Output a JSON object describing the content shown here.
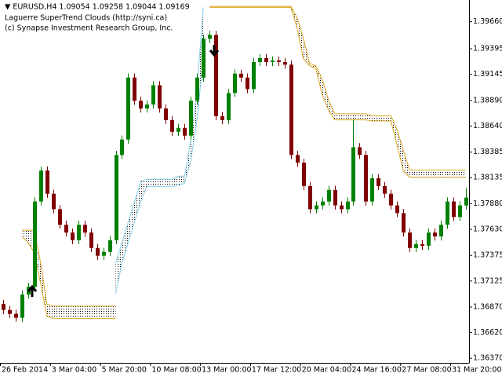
{
  "chart_data": {
    "type": "candlestick",
    "title": "▼ EURUSD,H4  1.09054 1.09258 1.09044 1.09169",
    "annotations": [
      "Laguerre SuperTrend Clouds (http://syni.ca)",
      "(c) Synapse Investment Research Group, Inc."
    ],
    "categories": [
      "26 Feb 2014",
      null,
      null,
      null,
      null,
      null,
      null,
      null,
      "3 Mar 04:00",
      null,
      null,
      null,
      null,
      null,
      null,
      null,
      "5 Mar 20:00",
      null,
      null,
      null,
      null,
      null,
      null,
      null,
      "10 Mar 08:00",
      null,
      null,
      null,
      null,
      null,
      null,
      null,
      "13 Mar 00:00",
      null,
      null,
      null,
      null,
      null,
      null,
      null,
      "17 Mar 12:00",
      null,
      null,
      null,
      null,
      null,
      null,
      null,
      "20 Mar 04:00",
      null,
      null,
      null,
      null,
      null,
      null,
      null,
      "24 Mar 16:00",
      null,
      null,
      null,
      null,
      null,
      null,
      null,
      "27 Mar 08:00",
      null,
      null,
      null,
      null,
      null,
      null,
      null,
      "31 Mar 20:00",
      null,
      null
    ],
    "open": [
      1.369,
      1.36842,
      1.36804,
      1.36766,
      1.36993,
      1.37069,
      1.37902,
      1.38205,
      1.37978,
      1.37827,
      1.37675,
      1.37599,
      1.37524,
      1.37675,
      1.37599,
      1.37448,
      1.37372,
      1.3741,
      1.37524,
      1.38357,
      1.38508,
      1.39114,
      1.38887,
      1.38811,
      1.3885,
      1.39039,
      1.38811,
      1.38698,
      1.38584,
      1.38622,
      1.38546,
      1.38887,
      1.39114,
      1.39493,
      1.39531,
      1.38736,
      1.38698,
      1.38963,
      1.39152,
      1.39114,
      1.39001,
      1.39266,
      1.39304,
      1.39266,
      1.39281,
      1.39266,
      1.3924,
      1.38357,
      1.38281,
      1.38054,
      1.37827,
      1.37864,
      1.37902,
      1.38016,
      1.37864,
      1.37827,
      1.37902,
      1.38433,
      1.38357,
      1.37902,
      1.3813,
      1.38054,
      1.37978,
      1.37864,
      1.37789,
      1.37599,
      1.37448,
      1.37486,
      1.3747,
      1.37599,
      1.37561,
      1.37675,
      1.37902,
      1.37751,
      1.37864
    ],
    "high": [
      1.3694,
      1.36882,
      1.36844,
      1.37033,
      1.37109,
      1.37942,
      1.38245,
      1.38245,
      1.38018,
      1.37867,
      1.37715,
      1.37639,
      1.37715,
      1.37715,
      1.37639,
      1.37488,
      1.3745,
      1.37564,
      1.38397,
      1.38548,
      1.39154,
      1.39154,
      1.38927,
      1.3889,
      1.39079,
      1.39079,
      1.38851,
      1.38738,
      1.38662,
      1.38662,
      1.38927,
      1.39154,
      1.39533,
      1.39571,
      1.39571,
      1.38776,
      1.39003,
      1.39192,
      1.39192,
      1.39154,
      1.39306,
      1.39344,
      1.39344,
      1.39321,
      1.39321,
      1.39306,
      1.3928,
      1.38397,
      1.38321,
      1.38094,
      1.37904,
      1.37942,
      1.38056,
      1.38056,
      1.37904,
      1.37942,
      1.387,
      1.38473,
      1.38397,
      1.3817,
      1.3817,
      1.38094,
      1.38018,
      1.37904,
      1.37829,
      1.37639,
      1.37526,
      1.37526,
      1.37639,
      1.37639,
      1.37715,
      1.37942,
      1.37942,
      1.37904,
      1.38035
    ],
    "low": [
      1.36802,
      1.36764,
      1.36726,
      1.36726,
      1.36953,
      1.37029,
      1.37862,
      1.37938,
      1.37787,
      1.37635,
      1.37559,
      1.37484,
      1.37484,
      1.37559,
      1.37408,
      1.37332,
      1.37332,
      1.3737,
      1.37484,
      1.38317,
      1.38468,
      1.38847,
      1.38771,
      1.38771,
      1.3881,
      1.38771,
      1.38658,
      1.38544,
      1.38544,
      1.38506,
      1.38506,
      1.38847,
      1.39074,
      1.39453,
      1.38696,
      1.38658,
      1.38658,
      1.38923,
      1.39074,
      1.38961,
      1.38961,
      1.39226,
      1.39226,
      1.39226,
      1.39226,
      1.392,
      1.38317,
      1.38241,
      1.38014,
      1.37787,
      1.37787,
      1.37824,
      1.37862,
      1.37824,
      1.37787,
      1.37787,
      1.37862,
      1.38317,
      1.37862,
      1.37862,
      1.38014,
      1.37938,
      1.37824,
      1.37749,
      1.37559,
      1.37408,
      1.37408,
      1.3743,
      1.3743,
      1.37521,
      1.37521,
      1.37635,
      1.37711,
      1.37711,
      1.37824
    ],
    "close": [
      1.36842,
      1.36804,
      1.36766,
      1.36993,
      1.37069,
      1.37902,
      1.38205,
      1.37978,
      1.37827,
      1.37675,
      1.37599,
      1.37524,
      1.37675,
      1.37599,
      1.37448,
      1.37372,
      1.3741,
      1.37524,
      1.38357,
      1.38508,
      1.39114,
      1.38887,
      1.38811,
      1.3885,
      1.39039,
      1.38811,
      1.38698,
      1.38584,
      1.38622,
      1.38546,
      1.38887,
      1.39114,
      1.39493,
      1.39531,
      1.38736,
      1.38698,
      1.38963,
      1.39152,
      1.39114,
      1.39001,
      1.39266,
      1.39304,
      1.39266,
      1.39281,
      1.39266,
      1.3924,
      1.38357,
      1.38281,
      1.38054,
      1.37827,
      1.37864,
      1.37902,
      1.38016,
      1.37864,
      1.37827,
      1.37902,
      1.38433,
      1.38357,
      1.37902,
      1.3813,
      1.38054,
      1.37978,
      1.37864,
      1.37789,
      1.37599,
      1.37448,
      1.37486,
      1.3747,
      1.37599,
      1.37561,
      1.37675,
      1.37902,
      1.37751,
      1.37864,
      1.3794
    ],
    "up_color": "#008000",
    "down_color": "#800000",
    "clouds": [
      {
        "color": "#daa520",
        "upper": [
          null,
          null,
          null,
          1.37622,
          1.37622,
          1.37622,
          1.373,
          1.369,
          1.3688,
          1.3688,
          1.3688,
          1.3688,
          1.3688,
          1.3688,
          1.3688,
          1.3688,
          1.3688,
          1.3688,
          1.3688,
          null,
          null,
          null,
          null,
          null,
          null,
          null,
          null,
          null,
          null,
          null,
          null,
          null,
          null,
          null,
          null,
          null,
          null,
          null,
          null,
          null,
          null,
          null,
          null,
          null,
          null,
          null,
          null,
          null,
          null,
          null,
          null,
          null,
          null,
          null,
          null,
          null,
          null,
          null,
          null,
          null,
          null,
          null,
          null,
          null,
          null,
          null,
          null,
          null,
          null,
          null,
          null,
          null,
          null,
          null,
          null
        ],
        "lower": [
          null,
          null,
          null,
          1.3756,
          1.375,
          1.374,
          1.371,
          1.3678,
          1.3676,
          1.3676,
          1.3676,
          1.3676,
          1.3676,
          1.3676,
          1.3676,
          1.3676,
          1.3676,
          1.3676,
          1.3676,
          null,
          null,
          null,
          null,
          null,
          null,
          null,
          null,
          null,
          null,
          null,
          null,
          null,
          null,
          null,
          null,
          null,
          null,
          null,
          null,
          null,
          null,
          null,
          null,
          null,
          null,
          null,
          null,
          null,
          null,
          null,
          null,
          null,
          null,
          null,
          null,
          null,
          null,
          null,
          null,
          null,
          null,
          null,
          null,
          null,
          null,
          null,
          null,
          null,
          null,
          null,
          null,
          null,
          null,
          null,
          null
        ]
      },
      {
        "color": "#87ceeb",
        "upper": [
          null,
          null,
          null,
          null,
          null,
          null,
          null,
          null,
          null,
          null,
          null,
          null,
          null,
          null,
          null,
          null,
          null,
          null,
          1.373,
          1.375,
          1.377,
          1.379,
          1.381,
          1.3812,
          1.3812,
          1.3812,
          1.3812,
          1.3812,
          1.3815,
          1.3815,
          1.385,
          1.39,
          1.398,
          null,
          null,
          null,
          null,
          null,
          null,
          null,
          null,
          null,
          null,
          null,
          null,
          null,
          null,
          null,
          null,
          null,
          null,
          null,
          null,
          null,
          null,
          null,
          null,
          null,
          null,
          null,
          null,
          null,
          null,
          null,
          null,
          null,
          null,
          null,
          null,
          null,
          null,
          null,
          null,
          null,
          null
        ],
        "lower": [
          null,
          null,
          null,
          null,
          null,
          null,
          null,
          null,
          null,
          null,
          null,
          null,
          null,
          null,
          null,
          null,
          null,
          null,
          1.37,
          1.373,
          1.375,
          1.377,
          1.379,
          1.3805,
          1.3805,
          1.3805,
          1.3805,
          1.3805,
          1.3806,
          1.3808,
          1.383,
          1.387,
          1.393,
          null,
          null,
          null,
          null,
          null,
          null,
          null,
          null,
          null,
          null,
          null,
          null,
          null,
          null,
          null,
          null,
          null,
          null,
          null,
          null,
          null,
          null,
          null,
          null,
          null,
          null,
          null,
          null,
          null,
          null,
          null,
          null,
          null,
          null,
          null,
          null,
          null,
          null,
          null,
          null,
          null,
          null
        ]
      },
      {
        "color": "#daa520",
        "upper": [
          null,
          null,
          null,
          null,
          null,
          null,
          null,
          null,
          null,
          null,
          null,
          null,
          null,
          null,
          null,
          null,
          null,
          null,
          null,
          null,
          null,
          null,
          null,
          null,
          null,
          null,
          null,
          null,
          null,
          null,
          null,
          null,
          null,
          1.3981,
          1.3981,
          1.3981,
          1.3981,
          1.3981,
          1.3981,
          1.3981,
          1.3981,
          1.3981,
          1.3981,
          1.3981,
          1.3981,
          1.3981,
          1.3981,
          1.397,
          1.395,
          1.3925,
          1.3923,
          1.391,
          1.389,
          1.3876,
          1.3876,
          1.3876,
          1.3876,
          1.3876,
          1.3876,
          1.3874,
          1.3874,
          1.3874,
          1.3874,
          1.386,
          1.384,
          1.3821,
          1.3821,
          1.3821,
          1.3821,
          1.3821,
          1.3821,
          1.3821,
          1.3821,
          1.3821,
          1.3821
        ],
        "lower": [
          null,
          null,
          null,
          null,
          null,
          null,
          null,
          null,
          null,
          null,
          null,
          null,
          null,
          null,
          null,
          null,
          null,
          null,
          null,
          null,
          null,
          null,
          null,
          null,
          null,
          null,
          null,
          null,
          null,
          null,
          null,
          null,
          null,
          1.398,
          1.398,
          1.398,
          1.398,
          1.398,
          1.398,
          1.398,
          1.398,
          1.398,
          1.398,
          1.398,
          1.398,
          1.398,
          1.398,
          1.396,
          1.393,
          1.3923,
          1.392,
          1.3895,
          1.388,
          1.387,
          1.387,
          1.387,
          1.387,
          1.387,
          1.387,
          1.3869,
          1.3869,
          1.3869,
          1.3869,
          1.3845,
          1.382,
          1.3814,
          1.3814,
          1.3814,
          1.3814,
          1.3814,
          1.3814,
          1.3814,
          1.3814,
          1.3814,
          1.3814
        ]
      }
    ],
    "ylim": [
      1.36325,
      1.39872
    ],
    "yticks": [
      {
        "value": 1.3966,
        "label": "1.39660"
      },
      {
        "value": 1.39395,
        "label": "1.39395"
      },
      {
        "value": 1.39145,
        "label": "1.39145"
      },
      {
        "value": 1.3889,
        "label": "1.38890"
      },
      {
        "value": 1.3864,
        "label": "1.38640"
      },
      {
        "value": 1.38385,
        "label": "1.38385"
      },
      {
        "value": 1.38135,
        "label": "1.38135"
      },
      {
        "value": 1.3788,
        "label": "1.37880"
      },
      {
        "value": 1.3763,
        "label": "1.37630"
      },
      {
        "value": 1.37375,
        "label": "1.37375"
      },
      {
        "value": 1.37125,
        "label": "1.37125"
      },
      {
        "value": 1.3687,
        "label": "1.36870"
      },
      {
        "value": 1.3662,
        "label": "1.36620"
      },
      {
        "value": 1.3637,
        "label": "1.36370"
      }
    ]
  }
}
